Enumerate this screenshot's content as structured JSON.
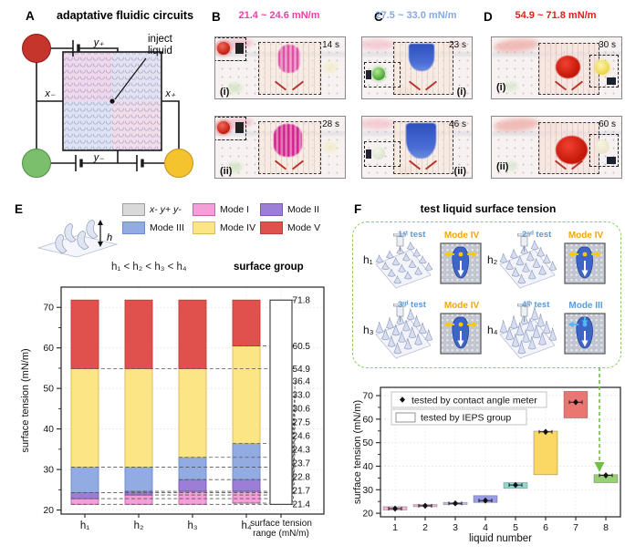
{
  "panel_a": {
    "label": "A",
    "title": "adaptative fluidic circuits",
    "inject_line1": "inject",
    "inject_line2": "liquid",
    "y_plus": "y₊",
    "y_minus": "y₋",
    "x_plus": "x₊",
    "x_minus": "x₋",
    "node_colors": {
      "top_left": "#c5352b",
      "bottom_left": "#7bbf6c",
      "bottom_right": "#f4c32d"
    }
  },
  "panel_b": {
    "label": "B",
    "range_text": "21.4 ~ 24.6 mN/m",
    "accent": "#ee3fa8",
    "frames": [
      {
        "tag": "(i)",
        "time": "14 s"
      },
      {
        "tag": "(ii)",
        "time": "28 s"
      }
    ]
  },
  "panel_c": {
    "label": "C",
    "range_text": "27.5 ~ 33.0 mN/m",
    "accent": "#85a9e0",
    "frames": [
      {
        "tag": "(i)",
        "time": "23 s"
      },
      {
        "tag": "(ii)",
        "time": "46 s"
      }
    ]
  },
  "panel_d": {
    "label": "D",
    "range_text": "54.9 ~ 71.8 mN/m",
    "accent": "#e81c15",
    "frames": [
      {
        "tag": "(i)",
        "time": "30 s"
      },
      {
        "tag": "(ii)",
        "time": "60 s"
      }
    ]
  },
  "panel_e": {
    "label": "E",
    "h_arrow_label": "h",
    "inequality": "h₁ < h₂ < h₃ < h₄",
    "surface_group_label": "surface group"
  },
  "panel_f": {
    "label": "F",
    "title": "test liquid surface tension",
    "test_color": "#5b9bd5",
    "box_color": "#8ccb63",
    "tests": [
      {
        "h": "h₁",
        "test": "1ˢᵗ test",
        "mode": "Mode IV",
        "mode_color": "#f0a50a",
        "accent": "#ffc800",
        "cone_height": 7
      },
      {
        "h": "h₂",
        "test": "2ⁿᵈ test",
        "mode": "Mode IV",
        "mode_color": "#f0a50a",
        "accent": "#ffc800",
        "cone_height": 9
      },
      {
        "h": "h₃",
        "test": "3ʳᵈ test",
        "mode": "Mode IV",
        "mode_color": "#f0a50a",
        "accent": "#ffc800",
        "cone_height": 11
      },
      {
        "h": "h₄",
        "test": "4ᵗʰ test",
        "mode": "Mode III",
        "mode_color": "#5b9bd5",
        "accent": "#55b7f0",
        "cone_height": 13
      }
    ]
  },
  "chart_data": [
    {
      "type": "bar",
      "title": "",
      "ylabel": "surface tension (mN/m)",
      "ylim": [
        19,
        75
      ],
      "yticks": [
        20,
        30,
        40,
        50,
        60,
        70
      ],
      "categories": [
        "h₁",
        "h₂",
        "h₃",
        "h₄"
      ],
      "legend": [
        {
          "label": "x- y+ y-",
          "color": "#d9d9d9",
          "border": "#9e9e9e"
        },
        {
          "label": "Mode I",
          "color": "#f49fd8",
          "border": "#c760ae"
        },
        {
          "label": "Mode II",
          "color": "#9d7ed7",
          "border": "#7a57b8"
        },
        {
          "label": "Mode III",
          "color": "#92abe2",
          "border": "#6e8cc8"
        },
        {
          "label": "Mode IV",
          "color": "#fce584",
          "border": "#d8bc55"
        },
        {
          "label": "Mode V",
          "color": "#e0514d",
          "border": "#c03a38"
        }
      ],
      "series": [
        {
          "name": "h₁",
          "segments": [
            [
              21.4,
              22.8,
              "Mode I"
            ],
            [
              22.8,
              24.3,
              "Mode II"
            ],
            [
              24.3,
              30.6,
              "Mode III"
            ],
            [
              30.6,
              54.9,
              "Mode IV"
            ],
            [
              54.9,
              71.8,
              "Mode V"
            ]
          ]
        },
        {
          "name": "h₂",
          "segments": [
            [
              21.4,
              23.7,
              "Mode I"
            ],
            [
              23.7,
              24.6,
              "Mode II"
            ],
            [
              24.6,
              30.6,
              "Mode III"
            ],
            [
              30.6,
              54.9,
              "Mode IV"
            ],
            [
              54.9,
              71.8,
              "Mode V"
            ]
          ]
        },
        {
          "name": "h₃",
          "segments": [
            [
              21.4,
              24.6,
              "Mode I"
            ],
            [
              24.6,
              27.5,
              "Mode II"
            ],
            [
              27.5,
              33.0,
              "Mode III"
            ],
            [
              33.0,
              54.9,
              "Mode IV"
            ],
            [
              54.9,
              71.8,
              "Mode V"
            ]
          ]
        },
        {
          "name": "h₄",
          "segments": [
            [
              21.7,
              24.6,
              "Mode I"
            ],
            [
              24.6,
              27.5,
              "Mode II"
            ],
            [
              27.5,
              36.4,
              "Mode III"
            ],
            [
              36.4,
              60.5,
              "Mode IV"
            ],
            [
              60.5,
              71.8,
              "Mode V"
            ]
          ]
        }
      ],
      "range_bar": {
        "category_label_lines": [
          "surface tension",
          "range (mN/m)"
        ],
        "from": 21.4,
        "to": 71.8
      },
      "range_values": [
        71.8,
        60.5,
        54.9,
        36.4,
        33.0,
        30.6,
        27.5,
        24.6,
        24.3,
        23.7,
        22.8,
        21.7,
        21.4
      ]
    },
    {
      "type": "box-scatter",
      "xlabel": "liquid number",
      "ylabel": "surface tension (mN/m)",
      "ylim": [
        18.5,
        73.5
      ],
      "yticks": [
        20,
        30,
        40,
        50,
        60,
        70
      ],
      "x": [
        1,
        2,
        3,
        4,
        5,
        6,
        7,
        8
      ],
      "legend": [
        {
          "marker": "diamond",
          "label": "tested by contact angle meter"
        },
        {
          "marker": "box",
          "label": "tested by IEPS group"
        }
      ],
      "points": [
        22.0,
        23.2,
        24.2,
        25.4,
        32.0,
        54.6,
        67.2,
        36.1
      ],
      "boxes": [
        {
          "x": 1,
          "from": 21.4,
          "to": 22.8,
          "color": "#f3b3d7"
        },
        {
          "x": 2,
          "from": 22.8,
          "to": 23.7,
          "color": "#f3b3d7"
        },
        {
          "x": 3,
          "from": 23.7,
          "to": 24.6,
          "color": "#cbbce9"
        },
        {
          "x": 4,
          "from": 24.6,
          "to": 27.5,
          "color": "#9a9ee6"
        },
        {
          "x": 5,
          "from": 30.6,
          "to": 33.0,
          "color": "#8fd8d0"
        },
        {
          "x": 6,
          "from": 36.4,
          "to": 54.9,
          "color": "#fbd763"
        },
        {
          "x": 7,
          "from": 60.5,
          "to": 71.8,
          "color": "#e97670"
        },
        {
          "x": 8,
          "from": 33.0,
          "to": 36.4,
          "color": "#97d076"
        }
      ],
      "arrow_color": "#6dbf45"
    }
  ]
}
